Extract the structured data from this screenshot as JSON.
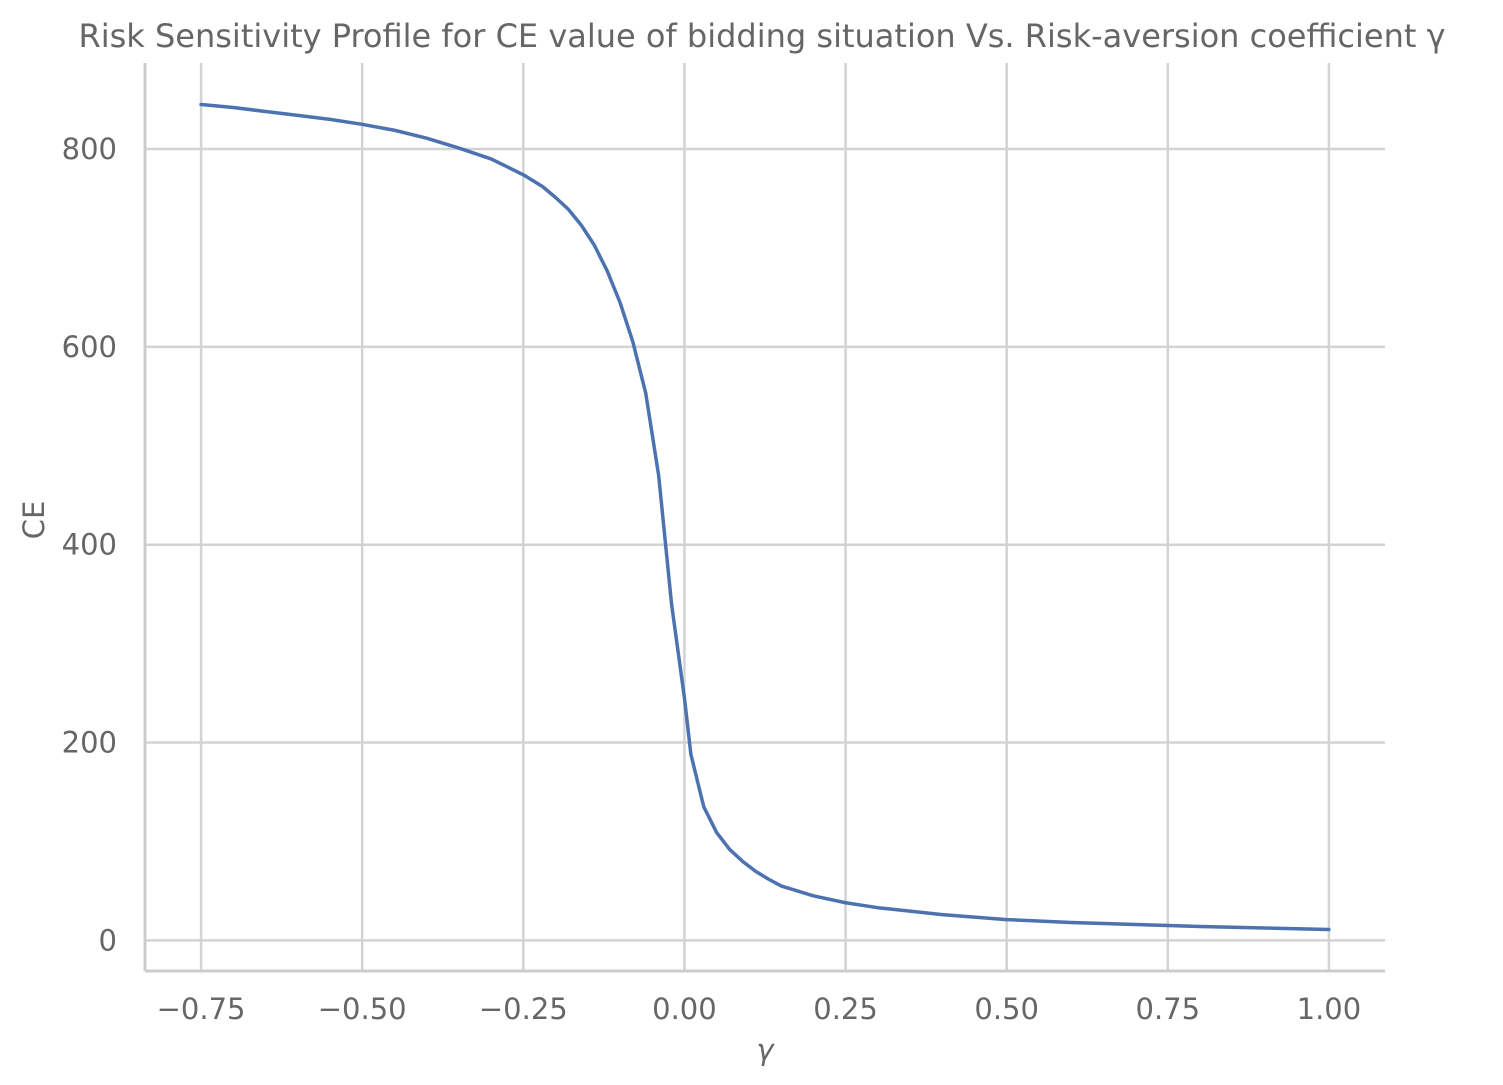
{
  "chart_data": {
    "type": "line",
    "title": "Risk Sensitivity Profile for CE value of bidding situation Vs. Risk-aversion coefficient γ",
    "xlabel": "γ",
    "ylabel": "CE",
    "xlim": [
      -0.837,
      1.087
    ],
    "ylim": [
      -31,
      887
    ],
    "grid": true,
    "xticks": [
      -0.75,
      -0.5,
      -0.25,
      0.0,
      0.25,
      0.5,
      0.75,
      1.0
    ],
    "xtick_labels": [
      "−0.75",
      "−0.50",
      "−0.25",
      "0.00",
      "0.25",
      "0.50",
      "0.75",
      "1.00"
    ],
    "yticks": [
      0,
      200,
      400,
      600,
      800
    ],
    "ytick_labels": [
      "0",
      "200",
      "400",
      "600",
      "800"
    ],
    "colors": {
      "series": "#4c72b0",
      "grid": "#d3d3d3",
      "text": "#666666"
    },
    "series": [
      {
        "x": [
          -0.75,
          -0.7,
          -0.65,
          -0.6,
          -0.55,
          -0.5,
          -0.45,
          -0.4,
          -0.35,
          -0.3,
          -0.25,
          -0.22,
          -0.2,
          -0.18,
          -0.16,
          -0.14,
          -0.12,
          -0.1,
          -0.08,
          -0.06,
          -0.04,
          -0.02,
          0.0,
          0.01,
          0.03,
          0.05,
          0.07,
          0.09,
          0.11,
          0.13,
          0.15,
          0.2,
          0.25,
          0.3,
          0.4,
          0.5,
          0.6,
          0.7,
          0.75,
          0.8,
          0.9,
          1.0
        ],
        "values": [
          845,
          842,
          838,
          834,
          830,
          825,
          819,
          811,
          801,
          790,
          774,
          762,
          751,
          739,
          723,
          703,
          677,
          645,
          605,
          553,
          470,
          340,
          245,
          188,
          135,
          109,
          92,
          80,
          70,
          62,
          55,
          45,
          38,
          33,
          26,
          21,
          18,
          16,
          15,
          14,
          12.5,
          11
        ]
      }
    ]
  }
}
